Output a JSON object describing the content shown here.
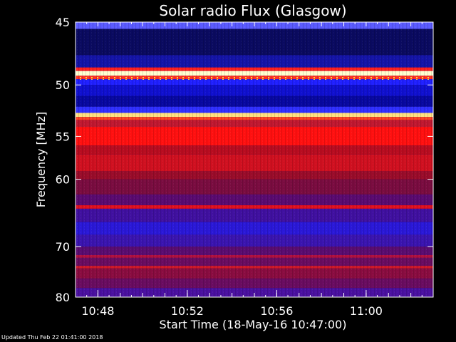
{
  "chart_data": {
    "type": "heatmap",
    "title": "Solar radio Flux (Glasgow)",
    "xlabel": "Start Time (18-May-16 10:47:00)",
    "ylabel": "Frequency [MHz]",
    "x_range_minutes": [
      0,
      16
    ],
    "y_range_mhz": [
      45,
      80
    ],
    "x_ticks": [
      {
        "label": "10:48",
        "minute": 1
      },
      {
        "label": "10:52",
        "minute": 5
      },
      {
        "label": "10:56",
        "minute": 9
      },
      {
        "label": "11:00",
        "minute": 13
      }
    ],
    "y_ticks": [
      {
        "label": "45",
        "mhz": 45
      },
      {
        "label": "50",
        "mhz": 50
      },
      {
        "label": "55",
        "mhz": 55
      },
      {
        "label": "60",
        "mhz": 60
      },
      {
        "label": "70",
        "mhz": 70
      },
      {
        "label": "80",
        "mhz": 80
      }
    ],
    "bands": [
      {
        "from": 45.0,
        "to": 45.5,
        "color": "#5a5aff"
      },
      {
        "from": 45.5,
        "to": 47.5,
        "color": "#0a0a60"
      },
      {
        "from": 47.5,
        "to": 48.5,
        "color": "#1414a8"
      },
      {
        "from": 48.5,
        "to": 48.8,
        "color": "#ff2020"
      },
      {
        "from": 48.8,
        "to": 49.2,
        "color": "#ffffd0"
      },
      {
        "from": 49.2,
        "to": 49.5,
        "color": "#ff3020"
      },
      {
        "from": 49.5,
        "to": 50.0,
        "color": "#2020ff"
      },
      {
        "from": 50.0,
        "to": 51.0,
        "color": "#1010d0"
      },
      {
        "from": 51.0,
        "to": 52.0,
        "color": "#0808a0"
      },
      {
        "from": 52.0,
        "to": 52.6,
        "color": "#3030ff"
      },
      {
        "from": 52.6,
        "to": 53.0,
        "color": "#ffe080"
      },
      {
        "from": 53.0,
        "to": 53.3,
        "color": "#ff4020"
      },
      {
        "from": 53.3,
        "to": 54.0,
        "color": "#c01830"
      },
      {
        "from": 54.0,
        "to": 56.0,
        "color": "#ff1010"
      },
      {
        "from": 56.0,
        "to": 57.0,
        "color": "#b80c20"
      },
      {
        "from": 57.0,
        "to": 59.0,
        "color": "#d01020"
      },
      {
        "from": 59.0,
        "to": 60.0,
        "color": "#9a0c2a"
      },
      {
        "from": 60.0,
        "to": 62.0,
        "color": "#7a0c40"
      },
      {
        "from": 62.0,
        "to": 63.5,
        "color": "#5a0a70"
      },
      {
        "from": 63.5,
        "to": 64.0,
        "color": "#e01020"
      },
      {
        "from": 64.0,
        "to": 66.0,
        "color": "#4010a0"
      },
      {
        "from": 66.0,
        "to": 68.0,
        "color": "#2a18d8"
      },
      {
        "from": 68.0,
        "to": 70.0,
        "color": "#3a14b0"
      },
      {
        "from": 70.0,
        "to": 71.5,
        "color": "#5a0c70"
      },
      {
        "from": 71.5,
        "to": 72.0,
        "color": "#b01040"
      },
      {
        "from": 72.0,
        "to": 73.5,
        "color": "#6a0c60"
      },
      {
        "from": 73.5,
        "to": 74.0,
        "color": "#d01828"
      },
      {
        "from": 74.0,
        "to": 76.0,
        "color": "#8a0c40"
      },
      {
        "from": 76.0,
        "to": 78.0,
        "color": "#6a0c60"
      },
      {
        "from": 78.0,
        "to": 80.0,
        "color": "#4a10a0"
      }
    ]
  },
  "footer": {
    "updated": "Updated Thu Feb 22 01:41:00 2018"
  }
}
